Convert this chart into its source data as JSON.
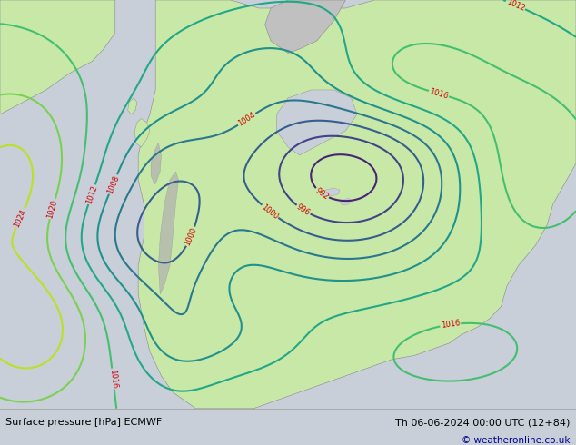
{
  "title_left": "Surface pressure [hPa] ECMWF",
  "title_right": "Th 06-06-2024 00:00 UTC (12+84)",
  "copyright": "© weatheronline.co.uk",
  "bg_color": "#c8cfd8",
  "land_color": "#c8e8a8",
  "mountain_color": "#b8b8b8",
  "bottom_bar_color": "#e0e0e0",
  "bottom_text_color": "#000000",
  "bottom_right_color": "#00008b",
  "contour_blue": "#0000cc",
  "contour_red": "#cc0000",
  "contour_black": "#000000",
  "label_blue": "#0000cc",
  "label_red": "#cc0000",
  "label_black": "#000000"
}
